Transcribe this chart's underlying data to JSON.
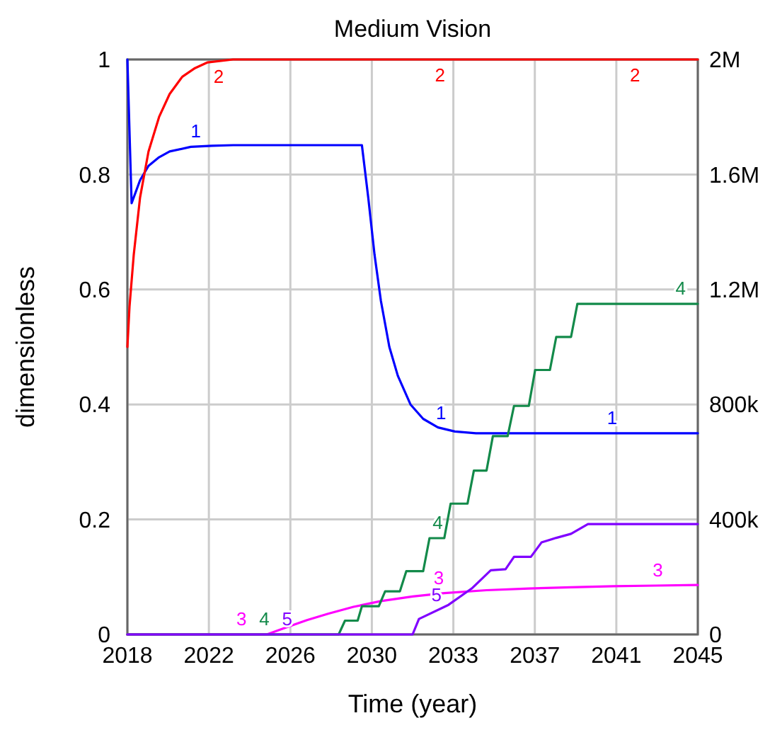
{
  "chart_data": {
    "type": "line",
    "title": "Medium Vision",
    "xlabel": "Time (year)",
    "ylabel": "dimensionless",
    "xlim": [
      2018,
      2045
    ],
    "xticks": [
      {
        "value": 2018,
        "label": "2018"
      },
      {
        "value": 2021.857,
        "label": "2022"
      },
      {
        "value": 2025.714,
        "label": "2026"
      },
      {
        "value": 2029.571,
        "label": "2030"
      },
      {
        "value": 2033.429,
        "label": "2033"
      },
      {
        "value": 2037.286,
        "label": "2037"
      },
      {
        "value": 2041.143,
        "label": "2041"
      },
      {
        "value": 2045,
        "label": "2045"
      }
    ],
    "ylim": [
      0,
      1
    ],
    "yticks": [
      0,
      0.2,
      0.4,
      0.6,
      0.8,
      1
    ],
    "y2lim": [
      0,
      2000000
    ],
    "y2ticks": [
      {
        "value": 0,
        "label": "0"
      },
      {
        "value": 400000,
        "label": "400k"
      },
      {
        "value": 800000,
        "label": "800k"
      },
      {
        "value": 1200000,
        "label": "1.2M"
      },
      {
        "value": 1600000,
        "label": "1.6M"
      },
      {
        "value": 2000000,
        "label": "2M"
      }
    ],
    "grid": true,
    "series": [
      {
        "name": "1",
        "color": "#0000ff",
        "x": [
          2018,
          2018.2,
          2018.6,
          2019,
          2019.5,
          2020,
          2021,
          2022,
          2023,
          2029.1,
          2029.4,
          2029.7,
          2030,
          2030.4,
          2030.8,
          2031.4,
          2032,
          2032.7,
          2033.5,
          2034.5,
          2036,
          2045
        ],
        "values": [
          1,
          0.75,
          0.79,
          0.815,
          0.83,
          0.84,
          0.848,
          0.85,
          0.851,
          0.851,
          0.76,
          0.66,
          0.58,
          0.5,
          0.45,
          0.4,
          0.375,
          0.36,
          0.353,
          0.35,
          0.35,
          0.35
        ]
      },
      {
        "name": "2",
        "color": "#ff0000",
        "x": [
          2018,
          2018.1,
          2018.3,
          2018.6,
          2019,
          2019.5,
          2020,
          2020.6,
          2021.2,
          2021.8,
          2023,
          2024,
          2045
        ],
        "values": [
          0.5,
          0.57,
          0.66,
          0.76,
          0.84,
          0.9,
          0.94,
          0.97,
          0.985,
          0.995,
          1,
          1,
          1
        ]
      },
      {
        "name": "3",
        "color": "#ff00ff",
        "x": [
          2018,
          2024.6,
          2025.5,
          2026.5,
          2027.5,
          2028.7,
          2030,
          2031.5,
          2033,
          2035,
          2037,
          2039,
          2041,
          2043,
          2045
        ],
        "values": [
          0,
          0,
          0.012,
          0.025,
          0.036,
          0.048,
          0.058,
          0.066,
          0.072,
          0.077,
          0.08,
          0.082,
          0.084,
          0.085,
          0.086
        ]
      },
      {
        "name": "4",
        "color": "#138a4a",
        "axis": "y2",
        "x": [
          2018,
          2028,
          2028.3,
          2028.9,
          2029.1,
          2029.9,
          2030.2,
          2030.9,
          2031.2,
          2032,
          2032.3,
          2033,
          2033.3,
          2034.1,
          2034.4,
          2035,
          2035.3,
          2036,
          2036.3,
          2037,
          2037.3,
          2038,
          2038.3,
          2039,
          2039.3,
          2045
        ],
        "values": [
          0,
          0,
          48000,
          48000,
          98000,
          98000,
          150000,
          150000,
          220000,
          220000,
          335000,
          335000,
          455000,
          455000,
          570000,
          570000,
          690000,
          690000,
          795000,
          795000,
          920000,
          920000,
          1035000,
          1035000,
          1150000,
          1150000
        ]
      },
      {
        "name": "5",
        "color": "#8000ff",
        "axis": "y2",
        "x": [
          2018,
          2031.5,
          2031.8,
          2033.2,
          2034.3,
          2035.2,
          2035.9,
          2036.3,
          2037.1,
          2037.6,
          2038.3,
          2039,
          2039.8,
          2045
        ],
        "values": [
          0,
          0,
          54000,
          103000,
          160000,
          223000,
          227000,
          270000,
          270000,
          320000,
          336000,
          350000,
          384000,
          384000
        ]
      }
    ]
  }
}
